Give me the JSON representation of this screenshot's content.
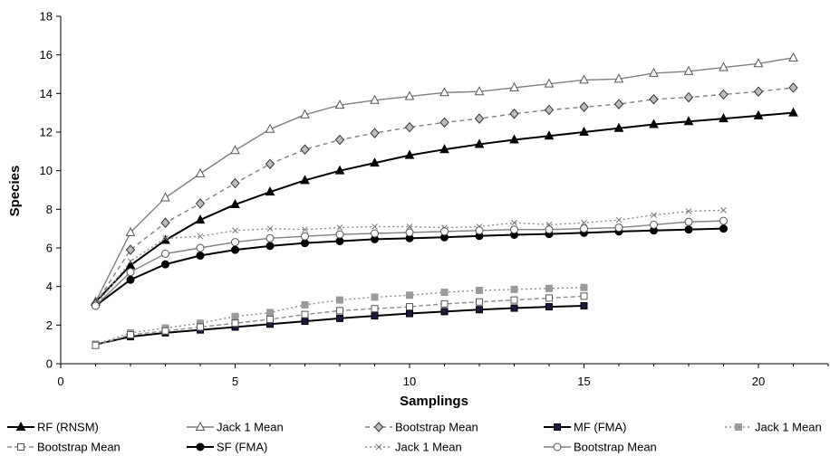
{
  "chart_data": {
    "type": "line",
    "title": "",
    "xlabel": "Samplings",
    "ylabel": "Species",
    "xlim": [
      0,
      22
    ],
    "ylim": [
      0,
      18
    ],
    "xticks": [
      0,
      5,
      10,
      15,
      20
    ],
    "yticks": [
      0,
      2,
      4,
      6,
      8,
      10,
      12,
      14,
      16,
      18
    ],
    "grid": false,
    "legend_position": "bottom",
    "series": [
      {
        "name": "RF (RNSM)",
        "color": "#000000",
        "dash": "solid",
        "marker": "triangle-filled",
        "x": [
          1,
          2,
          3,
          4,
          5,
          6,
          7,
          8,
          9,
          10,
          11,
          12,
          13,
          14,
          15,
          16,
          17,
          18,
          19,
          20,
          21
        ],
        "values": [
          3.2,
          5.1,
          6.4,
          7.45,
          8.25,
          8.9,
          9.5,
          10.0,
          10.4,
          10.8,
          11.1,
          11.37,
          11.6,
          11.8,
          12.0,
          12.2,
          12.4,
          12.55,
          12.7,
          12.85,
          13.0
        ]
      },
      {
        "name": "Jack 1 Mean",
        "color": "#7f7f7f",
        "dash": "solid",
        "marker": "triangle-open",
        "x": [
          1,
          2,
          3,
          4,
          5,
          6,
          7,
          8,
          9,
          10,
          11,
          12,
          13,
          14,
          15,
          16,
          17,
          18,
          19,
          20,
          21
        ],
        "values": [
          3.2,
          6.8,
          8.6,
          9.85,
          11.05,
          12.15,
          12.9,
          13.4,
          13.65,
          13.85,
          14.05,
          14.1,
          14.3,
          14.5,
          14.7,
          14.75,
          15.05,
          15.15,
          15.35,
          15.55,
          15.85
        ]
      },
      {
        "name": "Bootstrap Mean",
        "color": "#7f7f7f",
        "dash": "5,4",
        "marker": "diamond",
        "x": [
          1,
          2,
          3,
          4,
          5,
          6,
          7,
          8,
          9,
          10,
          11,
          12,
          13,
          14,
          15,
          16,
          17,
          18,
          19,
          20,
          21
        ],
        "values": [
          3.1,
          5.9,
          7.3,
          8.3,
          9.35,
          10.35,
          11.1,
          11.6,
          11.95,
          12.25,
          12.5,
          12.7,
          12.95,
          13.15,
          13.3,
          13.45,
          13.7,
          13.8,
          13.95,
          14.1,
          14.3
        ]
      },
      {
        "name": "MF (FMA)",
        "color": "#000000",
        "dash": "solid",
        "marker": "square-filled",
        "x": [
          1,
          2,
          3,
          4,
          5,
          6,
          7,
          8,
          9,
          10,
          11,
          12,
          13,
          14,
          15
        ],
        "values": [
          1.0,
          1.4,
          1.6,
          1.75,
          1.9,
          2.05,
          2.2,
          2.35,
          2.48,
          2.6,
          2.7,
          2.8,
          2.88,
          2.95,
          3.0
        ]
      },
      {
        "name": "Jack 1 Mean",
        "color": "#8c8c8c",
        "dash": "2,3",
        "marker": "square-gray",
        "x": [
          1,
          2,
          3,
          4,
          5,
          6,
          7,
          8,
          9,
          10,
          11,
          12,
          13,
          14,
          15
        ],
        "values": [
          1.0,
          1.6,
          1.85,
          2.1,
          2.45,
          2.65,
          3.05,
          3.3,
          3.45,
          3.55,
          3.7,
          3.8,
          3.85,
          3.9,
          3.95
        ]
      },
      {
        "name": "Bootstrap Mean",
        "color": "#8c8c8c",
        "dash": "5,3",
        "marker": "square-open",
        "x": [
          1,
          2,
          3,
          4,
          5,
          6,
          7,
          8,
          9,
          10,
          11,
          12,
          13,
          14,
          15
        ],
        "values": [
          0.95,
          1.5,
          1.7,
          1.9,
          2.1,
          2.3,
          2.55,
          2.75,
          2.85,
          2.95,
          3.1,
          3.2,
          3.3,
          3.4,
          3.5
        ]
      },
      {
        "name": "SF (FMA)",
        "color": "#000000",
        "dash": "solid",
        "marker": "circle-filled",
        "x": [
          1,
          2,
          3,
          4,
          5,
          6,
          7,
          8,
          9,
          10,
          11,
          12,
          13,
          14,
          15,
          16,
          17,
          18,
          19
        ],
        "values": [
          3.0,
          4.35,
          5.15,
          5.6,
          5.9,
          6.1,
          6.25,
          6.35,
          6.45,
          6.5,
          6.55,
          6.62,
          6.68,
          6.72,
          6.78,
          6.85,
          6.9,
          6.95,
          7.0
        ]
      },
      {
        "name": "Jack 1 Mean",
        "color": "#8c8c8c",
        "dash": "2,3",
        "marker": "x",
        "x": [
          1,
          2,
          3,
          4,
          5,
          6,
          7,
          8,
          9,
          10,
          11,
          12,
          13,
          14,
          15,
          16,
          17,
          18,
          19
        ],
        "values": [
          3.0,
          5.3,
          6.5,
          6.6,
          6.9,
          7.0,
          6.95,
          7.05,
          7.1,
          7.1,
          7.05,
          7.1,
          7.3,
          7.2,
          7.3,
          7.45,
          7.7,
          7.9,
          7.95
        ]
      },
      {
        "name": "Bootstrap Mean",
        "color": "#7f7f7f",
        "dash": "solid",
        "marker": "circle-open",
        "x": [
          1,
          2,
          3,
          4,
          5,
          6,
          7,
          8,
          9,
          10,
          11,
          12,
          13,
          14,
          15,
          16,
          17,
          18,
          19
        ],
        "values": [
          3.0,
          4.75,
          5.7,
          6.0,
          6.3,
          6.5,
          6.6,
          6.7,
          6.75,
          6.8,
          6.85,
          6.9,
          6.95,
          6.95,
          7.0,
          7.05,
          7.2,
          7.35,
          7.4
        ]
      }
    ]
  }
}
